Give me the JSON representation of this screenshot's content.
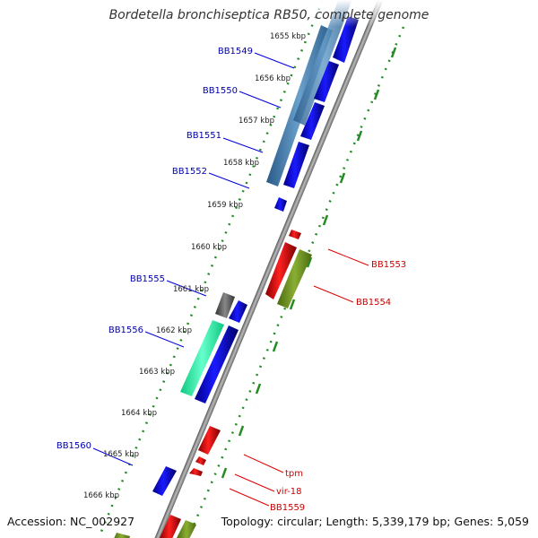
{
  "header": {
    "title": "Bordetella bronchiseptica RB50, complete genome"
  },
  "footer": {
    "accession_label": "Accession: NC_002927",
    "topology_label": "Topology: circular;",
    "length_label": "Length: 5,339,179 bp;",
    "genes_label": "Genes: 5,059"
  },
  "colors": {
    "forward_gene": "#0000ee",
    "reverse_gene": "#ee0000",
    "forward_label": "#0000aa",
    "reverse_label": "#cc0000",
    "backbone": "#888888",
    "tick_dots": "#228b22",
    "cds_steelblue": "#4682b4",
    "cds_green": "#6b8e23",
    "cds_aqua": "#33ffaa",
    "cds_gray": "#666666"
  },
  "scale_ticks": [
    {
      "label": "1655 kbp"
    },
    {
      "label": "1656 kbp"
    },
    {
      "label": "1657 kbp"
    },
    {
      "label": "1658 kbp"
    },
    {
      "label": "1659 kbp"
    },
    {
      "label": "1660 kbp"
    },
    {
      "label": "1661 kbp"
    },
    {
      "label": "1662 kbp"
    },
    {
      "label": "1663 kbp"
    },
    {
      "label": "1664 kbp"
    },
    {
      "label": "1665 kbp"
    },
    {
      "label": "1666 kbp"
    }
  ],
  "gene_labels": [
    {
      "name": "BB1549",
      "strand": "forward"
    },
    {
      "name": "BB1550",
      "strand": "forward"
    },
    {
      "name": "BB1551",
      "strand": "forward"
    },
    {
      "name": "BB1552",
      "strand": "forward"
    },
    {
      "name": "BB1555",
      "strand": "forward"
    },
    {
      "name": "BB1556",
      "strand": "forward"
    },
    {
      "name": "BB1560",
      "strand": "forward"
    },
    {
      "name": "BB1553",
      "strand": "reverse"
    },
    {
      "name": "BB1554",
      "strand": "reverse"
    },
    {
      "name": "tpm",
      "strand": "reverse"
    },
    {
      "name": "vir-18",
      "strand": "reverse"
    },
    {
      "name": "BB1559",
      "strand": "reverse"
    }
  ]
}
